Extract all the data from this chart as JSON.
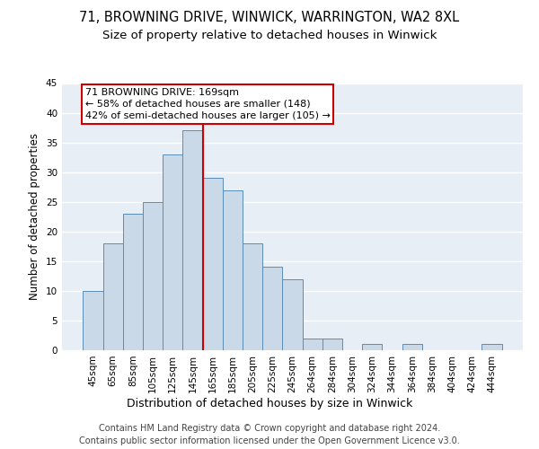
{
  "title1": "71, BROWNING DRIVE, WINWICK, WARRINGTON, WA2 8XL",
  "title2": "Size of property relative to detached houses in Winwick",
  "xlabel": "Distribution of detached houses by size in Winwick",
  "ylabel": "Number of detached properties",
  "bin_labels": [
    "45sqm",
    "65sqm",
    "85sqm",
    "105sqm",
    "125sqm",
    "145sqm",
    "165sqm",
    "185sqm",
    "205sqm",
    "225sqm",
    "245sqm",
    "264sqm",
    "284sqm",
    "304sqm",
    "324sqm",
    "344sqm",
    "364sqm",
    "384sqm",
    "404sqm",
    "424sqm",
    "444sqm"
  ],
  "bar_values": [
    10,
    18,
    23,
    25,
    33,
    37,
    29,
    27,
    18,
    14,
    12,
    2,
    2,
    0,
    1,
    0,
    1,
    0,
    0,
    0,
    1
  ],
  "bar_color": "#c9d9e8",
  "bar_edge_color": "#5b8db8",
  "background_color": "#e8eef5",
  "grid_color": "#ffffff",
  "vline_x_index": 6,
  "vline_color": "#cc0000",
  "annotation_text": "71 BROWNING DRIVE: 169sqm\n← 58% of detached houses are smaller (148)\n42% of semi-detached houses are larger (105) →",
  "annotation_box_color": "#cc0000",
  "footer1": "Contains HM Land Registry data © Crown copyright and database right 2024.",
  "footer2": "Contains public sector information licensed under the Open Government Licence v3.0.",
  "ylim": [
    0,
    45
  ],
  "yticks": [
    0,
    5,
    10,
    15,
    20,
    25,
    30,
    35,
    40,
    45
  ],
  "title1_fontsize": 10.5,
  "title2_fontsize": 9.5,
  "xlabel_fontsize": 9,
  "ylabel_fontsize": 8.5,
  "tick_fontsize": 7.5,
  "annotation_fontsize": 8,
  "footer_fontsize": 7
}
